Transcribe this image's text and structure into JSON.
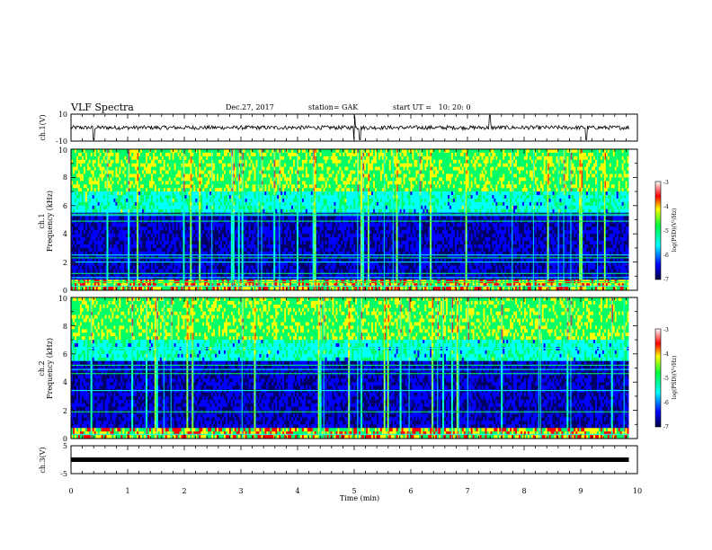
{
  "header": {
    "title": "VLF Spectra",
    "date": "Dec.27, 2017",
    "station": "station= GAK",
    "start": "start UT =   10: 20: 0"
  },
  "chart_data": [
    {
      "type": "line",
      "name": "ch1-voltage",
      "ylabel": "ch.1(V)",
      "ylim": [
        -10,
        10
      ],
      "yticks": [
        "10",
        "-10"
      ],
      "xlim": [
        0,
        10
      ],
      "description_level": {
        "baseline_v": 0,
        "noise_amplitude_v": 1.5
      },
      "spikes_min": [
        0.4,
        5.0,
        5.1,
        7.4,
        9.1
      ]
    },
    {
      "type": "heatmap",
      "name": "ch1-spectrogram",
      "ylabel": "ch.1\nFrequency (kHz)",
      "ylabel_lines": [
        "ch.1",
        "Frequency (kHz)"
      ],
      "ylim": [
        0,
        10
      ],
      "yticks": [
        "0",
        "2",
        "4",
        "6",
        "8",
        "10"
      ],
      "xlim": [
        0,
        10
      ],
      "colorbar": {
        "label": "log(PSD)(V²/Hz)",
        "range": [
          -7,
          -3
        ],
        "ticks": [
          "-3",
          "-4",
          "-5",
          "-6",
          "-7"
        ]
      },
      "horizontal_lines_khz": [
        0.3,
        0.6,
        0.9,
        1.2,
        2.0,
        2.3,
        2.5,
        4.9,
        5.3,
        5.4
      ]
    },
    {
      "type": "heatmap",
      "name": "ch2-spectrogram",
      "ylabel": "ch.2\nFrequency (kHz)",
      "ylabel_lines": [
        "ch.2",
        "Frequency (kHz)"
      ],
      "ylim": [
        0,
        10
      ],
      "yticks": [
        "0",
        "2",
        "4",
        "6",
        "8",
        "10"
      ],
      "xlim": [
        0,
        10
      ],
      "colorbar": {
        "label": "log(PSD)(V²/Hz)",
        "range": [
          -7,
          -3
        ],
        "ticks": [
          "-3",
          "-4",
          "-5",
          "-6",
          "-7"
        ]
      },
      "horizontal_lines_khz": [
        0.3,
        1.9,
        3.4,
        4.6,
        4.9,
        5.2,
        6.4
      ]
    },
    {
      "type": "line",
      "name": "ch3-voltage",
      "ylabel": "ch.3(V)",
      "ylim": [
        -5,
        5
      ],
      "yticks": [
        "5",
        "-5"
      ],
      "xlim": [
        0,
        10
      ],
      "constant_value_v": 0
    }
  ],
  "xaxis": {
    "label": "Time (min)",
    "ticks": [
      "0",
      "1",
      "2",
      "3",
      "4",
      "5",
      "6",
      "7",
      "8",
      "9",
      "10"
    ]
  },
  "colors": {
    "deep_blue": "#000066",
    "blue": "#0000ff",
    "cyan": "#00ffff",
    "green": "#00ff66",
    "yellow": "#ffff00",
    "red": "#ff0000",
    "magenta": "#ff00ff"
  }
}
